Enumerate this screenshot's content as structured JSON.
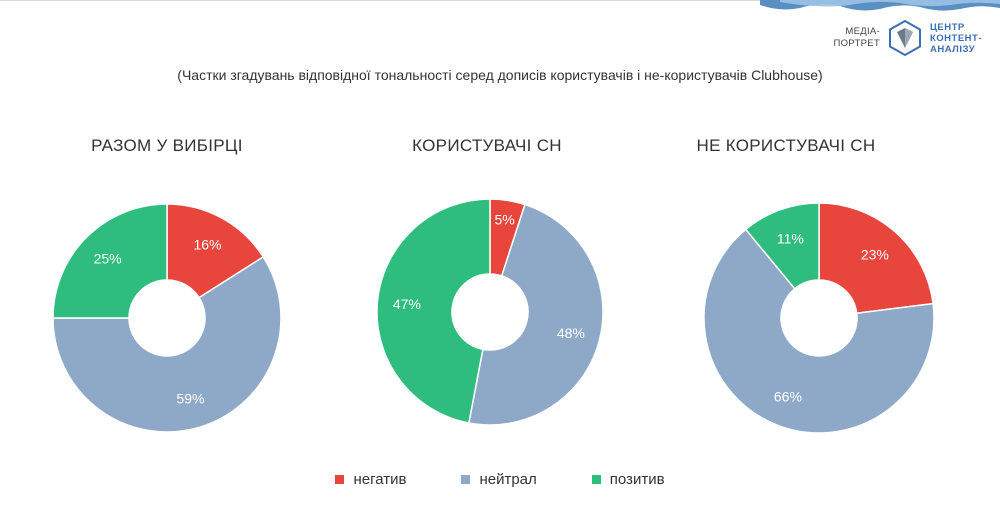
{
  "brand": {
    "sub_line1": "Медіа-",
    "sub_line2": "портрет",
    "name_line1": "Центр",
    "name_line2": "контент-",
    "name_line3": "аналізу"
  },
  "subtitle": "(Частки згадувань відповідної тональності серед дописів користувачів і не-користувачів Clubhouse)",
  "colors": {
    "negative": "#e8453c",
    "neutral": "#8ea9c8",
    "positive": "#2fbd7f"
  },
  "chart_data": [
    {
      "type": "pie",
      "title": "РАЗОМ У ВИБІРЦІ",
      "categories": [
        "негатив",
        "нейтрал",
        "позитив"
      ],
      "values": [
        16,
        59,
        25
      ],
      "labels": [
        "16%",
        "59%",
        "25%"
      ]
    },
    {
      "type": "pie",
      "title": "КОРИСТУВАЧІ СН",
      "categories": [
        "негатив",
        "нейтрал",
        "позитив"
      ],
      "values": [
        5,
        48,
        47
      ],
      "labels": [
        "5%",
        "48%",
        "47%"
      ]
    },
    {
      "type": "pie",
      "title": "НЕ КОРИСТУВАЧІ СН",
      "categories": [
        "негатив",
        "нейтрал",
        "позитив"
      ],
      "values": [
        23,
        66,
        11
      ],
      "labels": [
        "23%",
        "66%",
        "11%"
      ]
    }
  ],
  "legend": [
    {
      "label": "негатив",
      "key": "negative"
    },
    {
      "label": "нейтрал",
      "key": "neutral"
    },
    {
      "label": "позитив",
      "key": "positive"
    }
  ]
}
